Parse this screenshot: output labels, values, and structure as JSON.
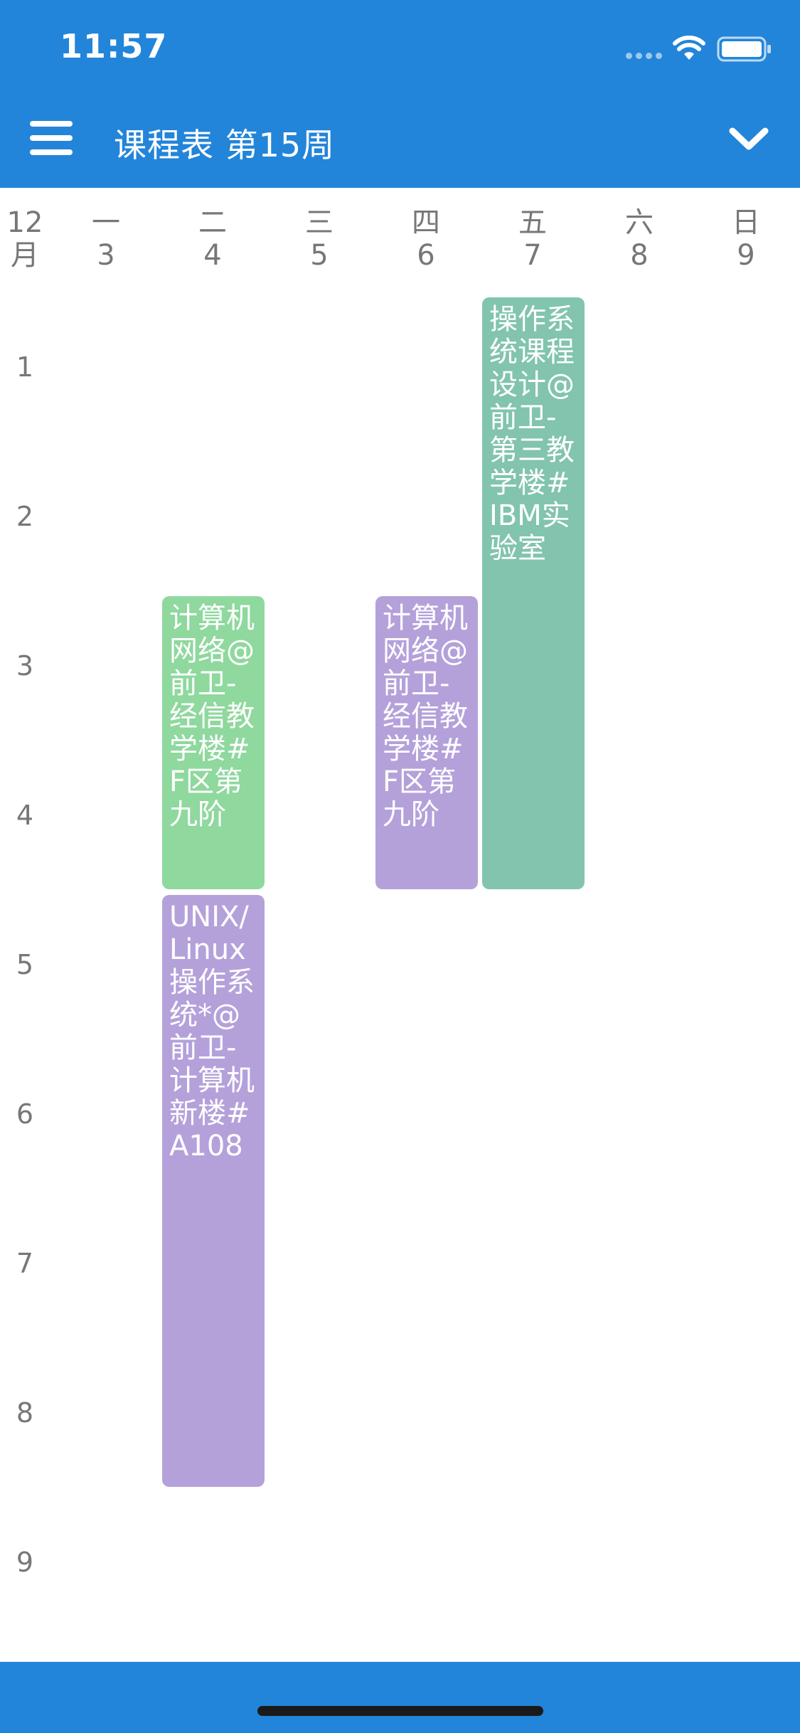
{
  "status_bar": {
    "time": "11:57"
  },
  "nav": {
    "title": "课程表 第15周"
  },
  "header": {
    "month": "12\n月",
    "days": [
      {
        "weekday": "一",
        "date": "3"
      },
      {
        "weekday": "二",
        "date": "4"
      },
      {
        "weekday": "三",
        "date": "5"
      },
      {
        "weekday": "四",
        "date": "6"
      },
      {
        "weekday": "五",
        "date": "7"
      },
      {
        "weekday": "六",
        "date": "8"
      },
      {
        "weekday": "日",
        "date": "9"
      }
    ]
  },
  "periods": [
    "1",
    "2",
    "3",
    "4",
    "5",
    "6",
    "7",
    "8",
    "9"
  ],
  "courses": [
    {
      "text": "计算机网络@前卫-经信教学楼#F区第九阶",
      "color": "#8FD89E"
    },
    {
      "text": "UNIX/Linux操作系统*@前卫-计算机新楼#A108",
      "color": "#B4A1DA"
    },
    {
      "text": "计算机网络@前卫-经信教学楼#F区第九阶",
      "color": "#B4A1DA"
    },
    {
      "text": "操作系统课程设计@前卫-第三教学楼#IBM实验室",
      "color": "#82C4AE"
    }
  ],
  "colors": {
    "bar": "#2285D9",
    "muted_text": "#777777"
  }
}
